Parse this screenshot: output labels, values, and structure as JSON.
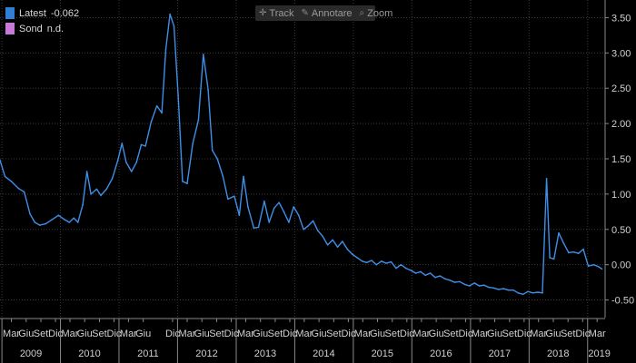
{
  "toolbar": {
    "track_label": "Track",
    "annotate_label": "Annotare",
    "zoom_label": "Zoom",
    "track_icon": "crosshair-icon",
    "annotate_icon": "pencil-icon",
    "zoom_icon": "magnifier-icon"
  },
  "legend": [
    {
      "name": "Latest",
      "value": "-0.062",
      "color": "#2f7fd6"
    },
    {
      "name": "Sond",
      "value": "n.d.",
      "color": "#c77ad6"
    }
  ],
  "colors": {
    "background": "#000000",
    "line": "#3d8fe8",
    "grid": "#3a3a3a",
    "axis_text": "#d0d0d0"
  },
  "chart_data": {
    "type": "line",
    "title": "",
    "xlabel": "",
    "ylabel": "",
    "ylim": [
      -0.75,
      3.75
    ],
    "yticks": [
      -0.5,
      0.0,
      0.5,
      1.0,
      1.5,
      2.0,
      2.5,
      3.0,
      3.5
    ],
    "ytick_labels": [
      "-0.50",
      "0.00",
      "0.50",
      "1.00",
      "1.50",
      "2.00",
      "2.50",
      "3.00",
      "3.50"
    ],
    "xlim": [
      "2008-12-20",
      "2019-04-20"
    ],
    "grid": true,
    "x_months": [
      {
        "date": "2009-03-01",
        "label": "Mar"
      },
      {
        "date": "2009-06-01",
        "label": "Giu"
      },
      {
        "date": "2009-09-01",
        "label": "Set"
      },
      {
        "date": "2009-12-01",
        "label": "Dic"
      },
      {
        "date": "2010-03-01",
        "label": "Mar"
      },
      {
        "date": "2010-06-01",
        "label": "Giu"
      },
      {
        "date": "2010-09-01",
        "label": "Set"
      },
      {
        "date": "2010-12-01",
        "label": "Dic"
      },
      {
        "date": "2011-03-01",
        "label": "Mar"
      },
      {
        "date": "2011-06-01",
        "label": "Giu"
      },
      {
        "date": "2011-12-01",
        "label": "Dic"
      },
      {
        "date": "2012-03-01",
        "label": "Mar"
      },
      {
        "date": "2012-06-01",
        "label": "Giu"
      },
      {
        "date": "2012-09-01",
        "label": "Set"
      },
      {
        "date": "2012-12-01",
        "label": "Dic"
      },
      {
        "date": "2013-03-01",
        "label": "Mar"
      },
      {
        "date": "2013-06-01",
        "label": "Giu"
      },
      {
        "date": "2013-09-01",
        "label": "Set"
      },
      {
        "date": "2013-12-01",
        "label": "Dic"
      },
      {
        "date": "2014-03-01",
        "label": "Mar"
      },
      {
        "date": "2014-06-01",
        "label": "Giu"
      },
      {
        "date": "2014-09-01",
        "label": "Set"
      },
      {
        "date": "2014-12-01",
        "label": "Dic"
      },
      {
        "date": "2015-03-01",
        "label": "Mar"
      },
      {
        "date": "2015-06-01",
        "label": "Giu"
      },
      {
        "date": "2015-09-01",
        "label": "Set"
      },
      {
        "date": "2015-12-01",
        "label": "Dic"
      },
      {
        "date": "2016-03-01",
        "label": "Mar"
      },
      {
        "date": "2016-06-01",
        "label": "Giu"
      },
      {
        "date": "2016-09-01",
        "label": "Set"
      },
      {
        "date": "2016-12-01",
        "label": "Dic"
      },
      {
        "date": "2017-03-01",
        "label": "Mar"
      },
      {
        "date": "2017-06-01",
        "label": "Giu"
      },
      {
        "date": "2017-09-01",
        "label": "Set"
      },
      {
        "date": "2017-12-01",
        "label": "Dic"
      },
      {
        "date": "2018-03-01",
        "label": "Mar"
      },
      {
        "date": "2018-06-01",
        "label": "Giu"
      },
      {
        "date": "2018-09-01",
        "label": "Set"
      },
      {
        "date": "2018-12-01",
        "label": "Dic"
      },
      {
        "date": "2019-03-01",
        "label": "Mar"
      }
    ],
    "x_years": [
      {
        "label": "2009",
        "center": "2009-07-01"
      },
      {
        "label": "2010",
        "center": "2010-07-01"
      },
      {
        "label": "2011",
        "center": "2011-07-01"
      },
      {
        "label": "2012",
        "center": "2012-07-01"
      },
      {
        "label": "2013",
        "center": "2013-07-01"
      },
      {
        "label": "2014",
        "center": "2014-07-01"
      },
      {
        "label": "2015",
        "center": "2015-07-01"
      },
      {
        "label": "2016",
        "center": "2016-07-01"
      },
      {
        "label": "2017",
        "center": "2017-07-01"
      },
      {
        "label": "2018",
        "center": "2018-07-01"
      },
      {
        "label": "2019",
        "center": "2019-03-15"
      }
    ],
    "series": [
      {
        "name": "Latest",
        "points": [
          [
            "2008-12-20",
            1.48
          ],
          [
            "2009-01-20",
            1.25
          ],
          [
            "2009-03-01",
            1.18
          ],
          [
            "2009-04-15",
            1.08
          ],
          [
            "2009-05-20",
            1.03
          ],
          [
            "2009-06-25",
            0.72
          ],
          [
            "2009-07-25",
            0.6
          ],
          [
            "2009-08-25",
            0.56
          ],
          [
            "2009-10-01",
            0.58
          ],
          [
            "2009-11-10",
            0.64
          ],
          [
            "2009-12-20",
            0.7
          ],
          [
            "2010-01-25",
            0.64
          ],
          [
            "2010-02-25",
            0.6
          ],
          [
            "2010-03-25",
            0.66
          ],
          [
            "2010-04-20",
            0.6
          ],
          [
            "2010-05-20",
            0.85
          ],
          [
            "2010-06-15",
            1.32
          ],
          [
            "2010-07-10",
            1.0
          ],
          [
            "2010-08-15",
            1.07
          ],
          [
            "2010-09-10",
            0.98
          ],
          [
            "2010-10-15",
            1.07
          ],
          [
            "2010-11-20",
            1.22
          ],
          [
            "2010-12-25",
            1.48
          ],
          [
            "2011-01-20",
            1.72
          ],
          [
            "2011-02-15",
            1.45
          ],
          [
            "2011-03-20",
            1.32
          ],
          [
            "2011-04-20",
            1.45
          ],
          [
            "2011-05-20",
            1.7
          ],
          [
            "2011-06-15",
            1.68
          ],
          [
            "2011-07-20",
            2.02
          ],
          [
            "2011-08-25",
            2.25
          ],
          [
            "2011-09-25",
            2.15
          ],
          [
            "2011-10-20",
            3.05
          ],
          [
            "2011-11-15",
            3.55
          ],
          [
            "2011-12-10",
            3.38
          ],
          [
            "2012-01-05",
            2.4
          ],
          [
            "2012-02-01",
            1.18
          ],
          [
            "2012-03-01",
            1.15
          ],
          [
            "2012-04-05",
            1.72
          ],
          [
            "2012-05-10",
            2.05
          ],
          [
            "2012-06-10",
            2.98
          ],
          [
            "2012-07-10",
            2.48
          ],
          [
            "2012-08-05",
            1.62
          ],
          [
            "2012-09-05",
            1.5
          ],
          [
            "2012-10-10",
            1.25
          ],
          [
            "2012-11-10",
            0.93
          ],
          [
            "2012-12-20",
            0.97
          ],
          [
            "2013-01-20",
            0.7
          ],
          [
            "2013-02-15",
            1.25
          ],
          [
            "2013-03-15",
            0.82
          ],
          [
            "2013-04-20",
            0.52
          ],
          [
            "2013-05-20",
            0.53
          ],
          [
            "2013-06-25",
            0.9
          ],
          [
            "2013-07-25",
            0.6
          ],
          [
            "2013-08-25",
            0.8
          ],
          [
            "2013-09-25",
            0.88
          ],
          [
            "2013-10-25",
            0.75
          ],
          [
            "2013-11-25",
            0.6
          ],
          [
            "2013-12-25",
            0.82
          ],
          [
            "2014-01-25",
            0.7
          ],
          [
            "2014-02-25",
            0.5
          ],
          [
            "2014-03-25",
            0.55
          ],
          [
            "2014-04-25",
            0.62
          ],
          [
            "2014-05-25",
            0.48
          ],
          [
            "2014-06-25",
            0.4
          ],
          [
            "2014-07-25",
            0.28
          ],
          [
            "2014-08-25",
            0.35
          ],
          [
            "2014-09-25",
            0.25
          ],
          [
            "2014-10-25",
            0.33
          ],
          [
            "2014-11-25",
            0.22
          ],
          [
            "2014-12-25",
            0.15
          ],
          [
            "2015-01-25",
            0.1
          ],
          [
            "2015-02-25",
            0.05
          ],
          [
            "2015-03-25",
            0.03
          ],
          [
            "2015-04-25",
            0.06
          ],
          [
            "2015-05-25",
            0.0
          ],
          [
            "2015-06-25",
            0.05
          ],
          [
            "2015-07-25",
            0.02
          ],
          [
            "2015-08-25",
            0.04
          ],
          [
            "2015-09-25",
            -0.05
          ],
          [
            "2015-10-25",
            0.0
          ],
          [
            "2015-11-25",
            -0.05
          ],
          [
            "2015-12-25",
            -0.08
          ],
          [
            "2016-01-25",
            -0.12
          ],
          [
            "2016-02-25",
            -0.1
          ],
          [
            "2016-03-25",
            -0.15
          ],
          [
            "2016-04-25",
            -0.12
          ],
          [
            "2016-05-25",
            -0.18
          ],
          [
            "2016-06-25",
            -0.16
          ],
          [
            "2016-07-25",
            -0.2
          ],
          [
            "2016-08-25",
            -0.22
          ],
          [
            "2016-09-25",
            -0.25
          ],
          [
            "2016-10-25",
            -0.24
          ],
          [
            "2016-11-25",
            -0.28
          ],
          [
            "2016-12-25",
            -0.3
          ],
          [
            "2017-01-25",
            -0.26
          ],
          [
            "2017-02-25",
            -0.3
          ],
          [
            "2017-03-25",
            -0.29
          ],
          [
            "2017-04-25",
            -0.32
          ],
          [
            "2017-05-25",
            -0.33
          ],
          [
            "2017-06-25",
            -0.35
          ],
          [
            "2017-07-25",
            -0.34
          ],
          [
            "2017-08-25",
            -0.36
          ],
          [
            "2017-09-25",
            -0.36
          ],
          [
            "2017-10-25",
            -0.4
          ],
          [
            "2017-11-25",
            -0.42
          ],
          [
            "2017-12-25",
            -0.38
          ],
          [
            "2018-01-25",
            -0.4
          ],
          [
            "2018-02-25",
            -0.39
          ],
          [
            "2018-03-25",
            -0.4
          ],
          [
            "2018-04-20",
            1.22
          ],
          [
            "2018-05-10",
            0.1
          ],
          [
            "2018-06-05",
            0.08
          ],
          [
            "2018-07-05",
            0.45
          ],
          [
            "2018-08-05",
            0.3
          ],
          [
            "2018-09-05",
            0.17
          ],
          [
            "2018-10-05",
            0.18
          ],
          [
            "2018-11-05",
            0.16
          ],
          [
            "2018-12-05",
            0.22
          ],
          [
            "2019-01-05",
            -0.02
          ],
          [
            "2019-02-10",
            0.0
          ],
          [
            "2019-03-10",
            -0.03
          ],
          [
            "2019-03-31",
            -0.06
          ]
        ]
      }
    ]
  }
}
